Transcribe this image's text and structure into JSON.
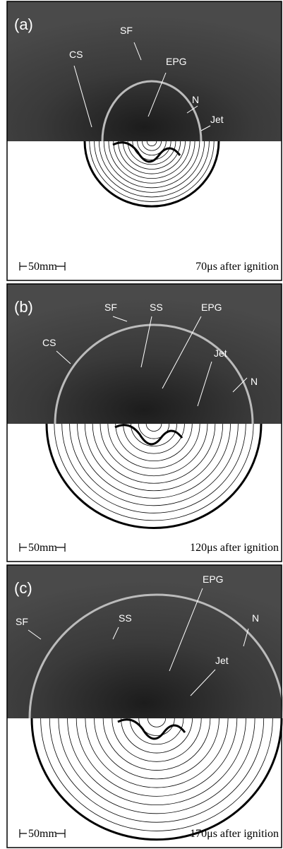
{
  "panels": [
    {
      "label": "(a)",
      "annotations": [
        "SF",
        "CS",
        "EPG",
        "N",
        "Jet"
      ],
      "scale_bar": "50mm",
      "caption": "70μs after ignition"
    },
    {
      "label": "(b)",
      "annotations": [
        "SF",
        "SS",
        "EPG",
        "CS",
        "Jet",
        "N"
      ],
      "scale_bar": "50mm",
      "caption": "120μs after ignition"
    },
    {
      "label": "(c)",
      "annotations": [
        "EPG",
        "SS",
        "SF",
        "N",
        "Jet"
      ],
      "scale_bar": "50mm",
      "caption": "170μs after ignition"
    }
  ]
}
